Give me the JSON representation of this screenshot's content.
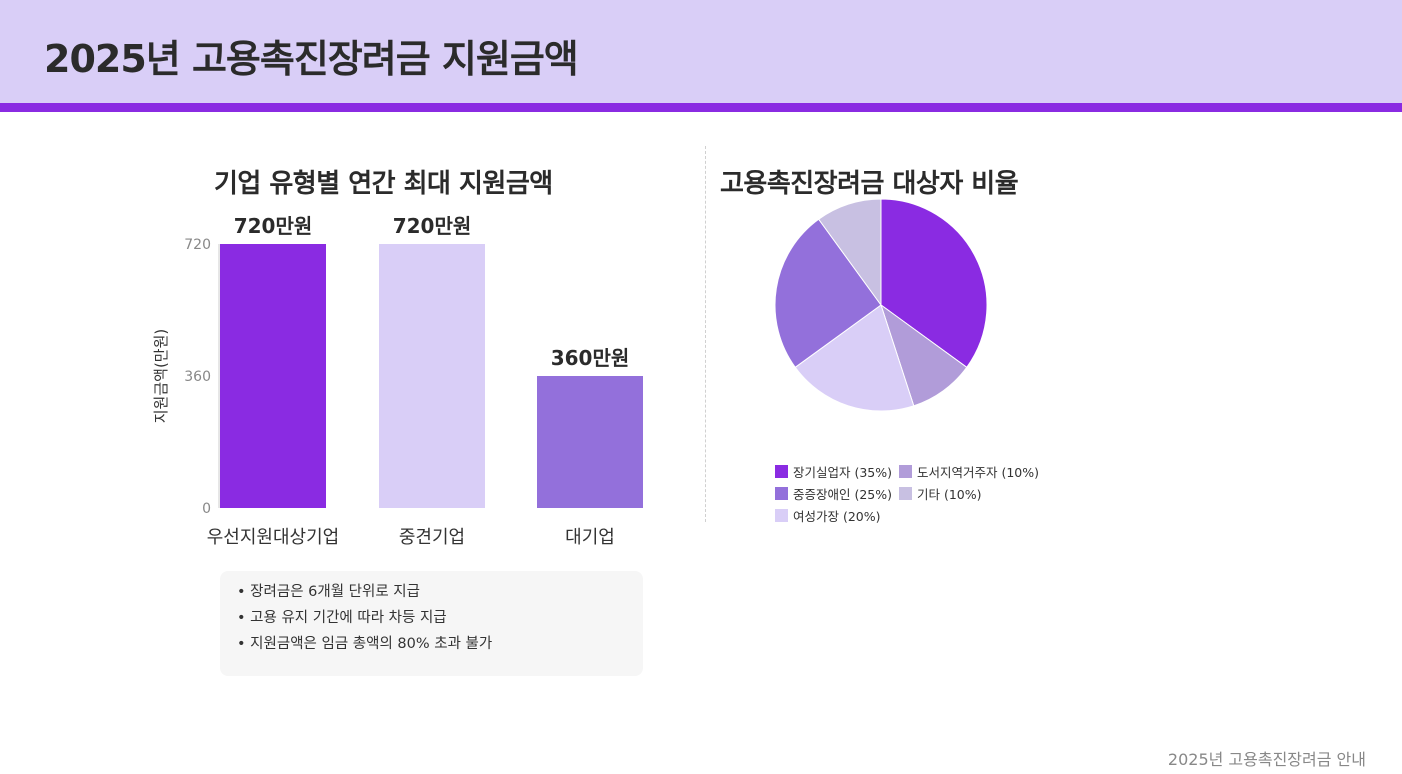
{
  "header": {
    "title": "2025년 고용촉진장려금 지원금액"
  },
  "bar_chart_data": {
    "type": "bar",
    "title": "기업 유형별 연간 최대 지원금액",
    "categories": [
      "우선지원대상기업",
      "중견기업",
      "대기업"
    ],
    "values": [
      720,
      720,
      360
    ],
    "value_labels": [
      "720만원",
      "720만원",
      "360만원"
    ],
    "colors": [
      "#8a2be2",
      "#d9cef7",
      "#9370db"
    ],
    "ylabel": "지원금액(만원)",
    "yticks": [
      "0",
      "360",
      "720"
    ],
    "ylim": [
      0,
      720
    ]
  },
  "pie_chart_data": {
    "type": "pie",
    "title": "고용촉진장려금 대상자 비율",
    "labels": [
      "장기실업자",
      "중증장애인",
      "여성가장",
      "도서지역거주자",
      "기타"
    ],
    "values": [
      35,
      25,
      20,
      10,
      10
    ],
    "legend_labels": [
      "장기실업자 (35%)",
      "중증장애인 (25%)",
      "여성가장 (20%)",
      "도서지역거주자 (10%)",
      "기타 (10%)"
    ],
    "colors": [
      "#8a2be2",
      "#9370db",
      "#d9cef7",
      "#b19cd9",
      "#c8c0e2"
    ]
  },
  "notes": [
    "장려금은 6개월 단위로 지급",
    "고용 유지 기간에 따라 차등 지급",
    "지원금액은 임금 총액의 80% 초과 불가"
  ],
  "footer": {
    "text": "2025년 고용촉진장려금 안내"
  }
}
